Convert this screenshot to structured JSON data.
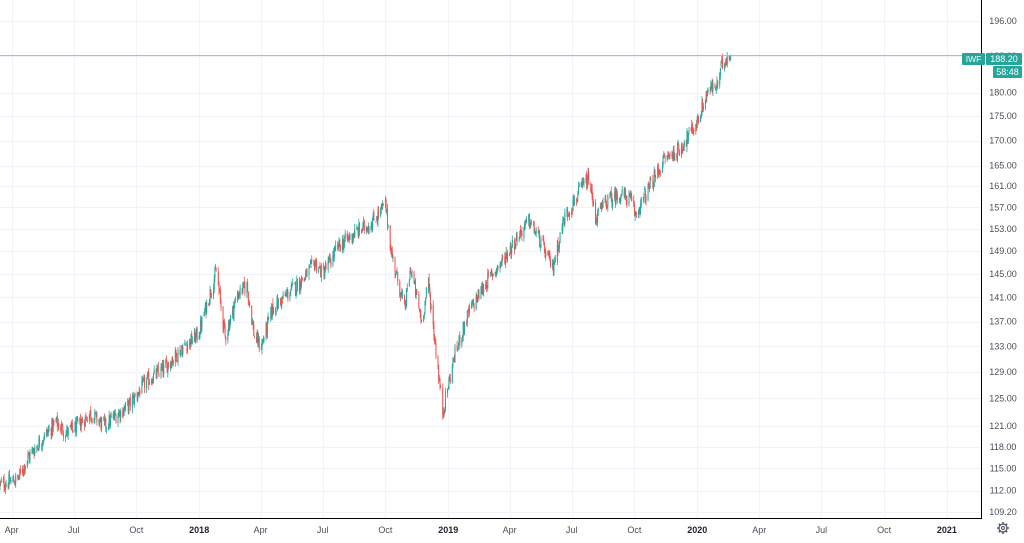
{
  "colors": {
    "up": "#26a69a",
    "down": "#ef5350",
    "grid": "#f0f3fa",
    "axis_line": "#000000",
    "price_line": "#7fd1c8",
    "badge_bg": "#26a69a",
    "badge_text": "#ffffff",
    "tick_text": "#4a4e5a"
  },
  "price_badge": {
    "symbol": "IWF",
    "price": "188.20",
    "countdown": "58:48"
  },
  "settings_icon": "gear-icon",
  "chart_data": {
    "type": "candlestick",
    "title": "",
    "xlabel": "",
    "ylabel": "",
    "y_scale": "log",
    "ylim": [
      108.4,
      201
    ],
    "xlim": [
      "2017-03-15",
      "2021-02-20"
    ],
    "grid": true,
    "y_ticks": [
      "196.00",
      "188.00",
      "180.00",
      "175.00",
      "170.00",
      "165.00",
      "161.00",
      "157.00",
      "153.00",
      "149.00",
      "145.00",
      "141.00",
      "137.00",
      "133.00",
      "129.00",
      "125.00",
      "121.00",
      "118.00",
      "115.00",
      "112.00",
      "109.20"
    ],
    "x_ticks": [
      {
        "label": "Apr",
        "date": "2017-04-01",
        "bold": false
      },
      {
        "label": "Jul",
        "date": "2017-07-01",
        "bold": false
      },
      {
        "label": "Oct",
        "date": "2017-10-01",
        "bold": false
      },
      {
        "label": "2018",
        "date": "2018-01-01",
        "bold": true
      },
      {
        "label": "Apr",
        "date": "2018-04-01",
        "bold": false
      },
      {
        "label": "Jul",
        "date": "2018-07-01",
        "bold": false
      },
      {
        "label": "Oct",
        "date": "2018-10-01",
        "bold": false
      },
      {
        "label": "2019",
        "date": "2019-01-01",
        "bold": true
      },
      {
        "label": "Apr",
        "date": "2019-04-01",
        "bold": false
      },
      {
        "label": "Jul",
        "date": "2019-07-01",
        "bold": false
      },
      {
        "label": "Oct",
        "date": "2019-10-01",
        "bold": false
      },
      {
        "label": "2020",
        "date": "2020-01-01",
        "bold": true
      },
      {
        "label": "Apr",
        "date": "2020-04-01",
        "bold": false
      },
      {
        "label": "Jul",
        "date": "2020-07-01",
        "bold": false
      },
      {
        "label": "Oct",
        "date": "2020-10-01",
        "bold": false
      },
      {
        "label": "2021",
        "date": "2021-01-01",
        "bold": true
      }
    ],
    "last_price": 188.2,
    "price_path": [
      [
        "2017-03-15",
        112.8
      ],
      [
        "2017-04-10",
        113.5
      ],
      [
        "2017-04-25",
        116.5
      ],
      [
        "2017-05-15",
        119.0
      ],
      [
        "2017-06-05",
        121.5
      ],
      [
        "2017-06-20",
        120.0
      ],
      [
        "2017-07-05",
        120.8
      ],
      [
        "2017-07-25",
        122.8
      ],
      [
        "2017-08-15",
        121.0
      ],
      [
        "2017-09-01",
        122.5
      ],
      [
        "2017-09-20",
        124.0
      ],
      [
        "2017-10-15",
        127.5
      ],
      [
        "2017-11-10",
        129.5
      ],
      [
        "2017-12-05",
        132.5
      ],
      [
        "2017-12-31",
        135.0
      ],
      [
        "2018-01-26",
        145.5
      ],
      [
        "2018-02-08",
        134.5
      ],
      [
        "2018-02-26",
        141.5
      ],
      [
        "2018-03-12",
        143.0
      ],
      [
        "2018-03-23",
        134.5
      ],
      [
        "2018-04-02",
        133.0
      ],
      [
        "2018-04-18",
        139.0
      ],
      [
        "2018-05-10",
        141.5
      ],
      [
        "2018-06-05",
        144.5
      ],
      [
        "2018-06-20",
        147.0
      ],
      [
        "2018-07-01",
        145.0
      ],
      [
        "2018-07-25",
        150.0
      ],
      [
        "2018-08-20",
        152.5
      ],
      [
        "2018-09-10",
        154.0
      ],
      [
        "2018-10-01",
        157.5
      ],
      [
        "2018-10-10",
        148.5
      ],
      [
        "2018-10-29",
        139.0
      ],
      [
        "2018-11-07",
        146.0
      ],
      [
        "2018-11-23",
        137.0
      ],
      [
        "2018-12-03",
        143.5
      ],
      [
        "2018-12-24",
        123.0
      ],
      [
        "2019-01-10",
        131.5
      ],
      [
        "2019-01-31",
        138.5
      ],
      [
        "2019-02-28",
        144.0
      ],
      [
        "2019-03-20",
        147.0
      ],
      [
        "2019-04-15",
        152.0
      ],
      [
        "2019-04-30",
        154.5
      ],
      [
        "2019-05-15",
        151.0
      ],
      [
        "2019-06-03",
        146.0
      ],
      [
        "2019-06-20",
        155.0
      ],
      [
        "2019-07-15",
        160.5
      ],
      [
        "2019-07-26",
        162.5
      ],
      [
        "2019-08-05",
        155.0
      ],
      [
        "2019-08-20",
        158.0
      ],
      [
        "2019-09-10",
        159.5
      ],
      [
        "2019-09-25",
        158.5
      ],
      [
        "2019-10-02",
        155.5
      ],
      [
        "2019-10-20",
        160.0
      ],
      [
        "2019-11-15",
        166.5
      ],
      [
        "2019-12-05",
        168.0
      ],
      [
        "2019-12-31",
        173.5
      ],
      [
        "2020-01-17",
        180.5
      ],
      [
        "2020-01-31",
        181.5
      ],
      [
        "2020-02-05",
        185.5
      ],
      [
        "2020-02-11",
        187.5
      ],
      [
        "2020-02-19",
        188.2
      ]
    ]
  }
}
